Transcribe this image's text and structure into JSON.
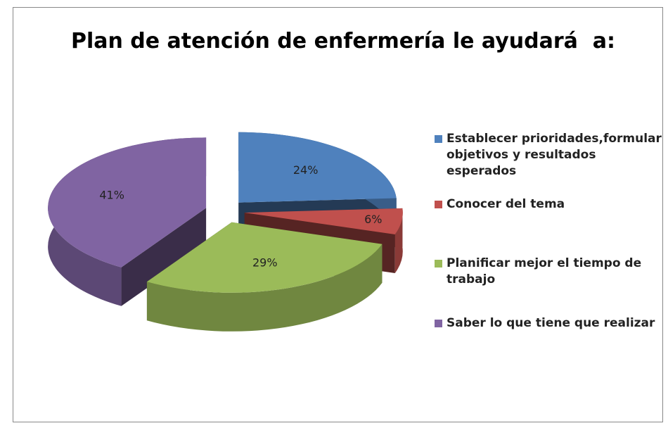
{
  "chart_data": {
    "type": "pie",
    "title": "Plan de atención de enfermería le ayudará  a:",
    "categories": [
      "Establecer prioridades,formular objetivos y resultados esperados",
      "Conocer del tema",
      "Planificar mejor el tiempo de trabajo",
      "Saber lo que tiene que realizar"
    ],
    "values": [
      24,
      6,
      29,
      41
    ],
    "value_labels": [
      "24%",
      "6%",
      "29%",
      "41%"
    ],
    "colors": [
      "#4f81bd",
      "#c0504d",
      "#9bbb59",
      "#8064a2"
    ],
    "legend": "right"
  }
}
